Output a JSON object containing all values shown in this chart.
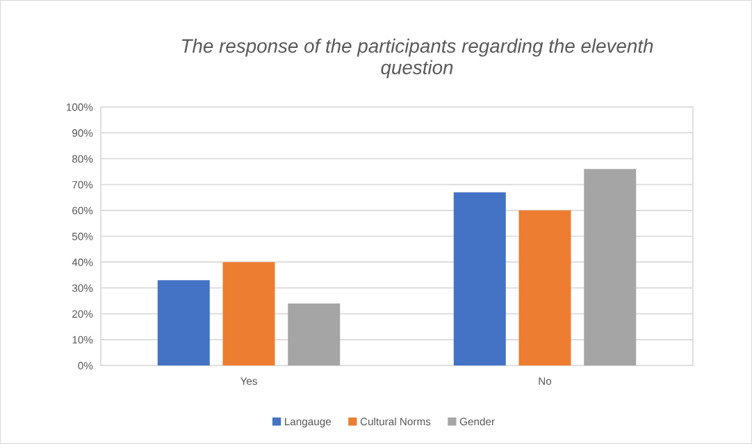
{
  "chart_data": {
    "type": "bar",
    "title": "The response of the participants regarding the eleventh question",
    "categories": [
      "Yes",
      "No"
    ],
    "series": [
      {
        "name": "Langauge",
        "color": "#4472c4",
        "values": [
          33,
          67
        ]
      },
      {
        "name": "Cultural Norms",
        "color": "#ed7d31",
        "values": [
          40,
          60
        ]
      },
      {
        "name": "Gender",
        "color": "#a5a5a5",
        "values": [
          24,
          76
        ]
      }
    ],
    "ylim": [
      0,
      100
    ],
    "yticks": [
      {
        "value": 0,
        "label": "0%"
      },
      {
        "value": 10,
        "label": "10%"
      },
      {
        "value": 20,
        "label": "20%"
      },
      {
        "value": 30,
        "label": "30%"
      },
      {
        "value": 40,
        "label": "40%"
      },
      {
        "value": 50,
        "label": "50%"
      },
      {
        "value": 60,
        "label": "60%"
      },
      {
        "value": 70,
        "label": "70%"
      },
      {
        "value": 80,
        "label": "80%"
      },
      {
        "value": 90,
        "label": "90%"
      },
      {
        "value": 100,
        "label": "100%"
      }
    ],
    "grid": "y",
    "legend": "bottom"
  }
}
